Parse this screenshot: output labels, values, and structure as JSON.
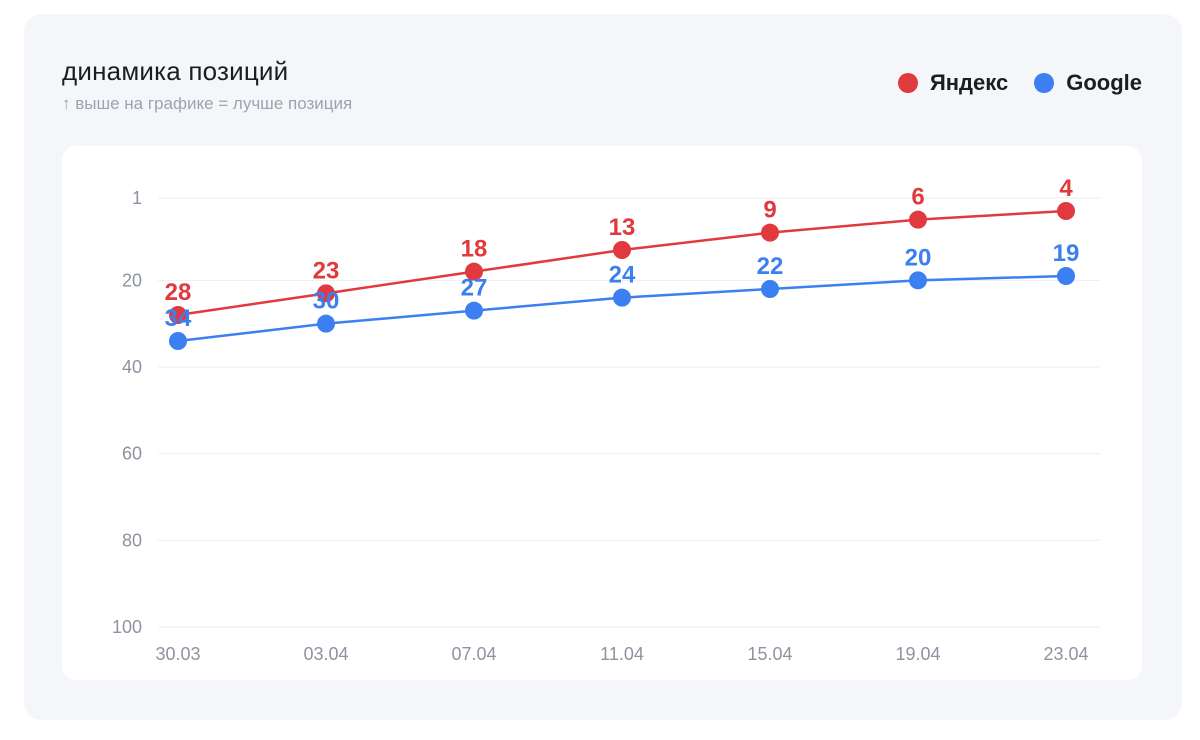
{
  "header": {
    "title": "динамика позиций",
    "subtitle": "↑ выше на графике = лучше позиция"
  },
  "legend": [
    {
      "label": "Яндекс",
      "color": "#e0393e"
    },
    {
      "label": "Google",
      "color": "#3b7ff0"
    }
  ],
  "chart_data": {
    "type": "line",
    "title": "динамика позиций",
    "subtitle": "↑ выше на графике = лучше позиция",
    "x": [
      "30.03",
      "03.04",
      "07.04",
      "11.04",
      "15.04",
      "19.04",
      "23.04"
    ],
    "series": [
      {
        "name": "Яндекс",
        "color": "#e0393e",
        "values": [
          28,
          23,
          18,
          13,
          9,
          6,
          4
        ]
      },
      {
        "name": "Google",
        "color": "#3b7ff0",
        "values": [
          34,
          30,
          27,
          24,
          22,
          20,
          19
        ]
      }
    ],
    "y_ticks": [
      1,
      20,
      40,
      60,
      80,
      100
    ],
    "ylim": [
      1,
      100
    ],
    "y_inverted": true,
    "grid": true,
    "legend_position": "top-right",
    "data_labels": true
  }
}
